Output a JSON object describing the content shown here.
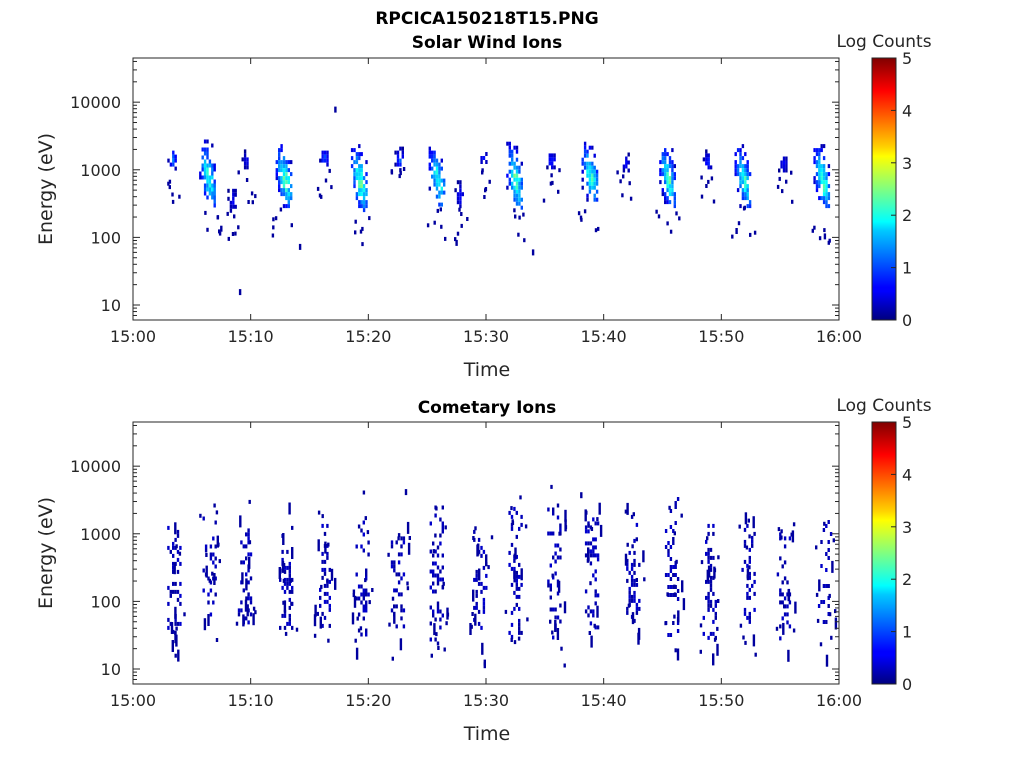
{
  "figure": {
    "title": "RPCICA150218T15.PNG"
  },
  "chart_data": [
    {
      "type": "heatmap",
      "title": "Solar Wind Ions",
      "xlabel": "Time",
      "ylabel": "Energy (eV)",
      "xlim": [
        "15:00",
        "16:00"
      ],
      "x_ticks": [
        "15:00",
        "15:10",
        "15:20",
        "15:30",
        "15:40",
        "15:50",
        "16:00"
      ],
      "ylim": [
        6,
        45000
      ],
      "y_scale": "log",
      "y_ticks": [
        {
          "value": 10,
          "label": "10"
        },
        {
          "value": 100,
          "label": "100"
        },
        {
          "value": 1000,
          "label": "1000"
        },
        {
          "value": 10000,
          "label": "10000"
        }
      ],
      "colorbar": {
        "label": "Log Counts",
        "min": 0,
        "max": 5,
        "ticks": [
          "0",
          "1",
          "2",
          "3",
          "4",
          "5"
        ],
        "colormap": "jet"
      },
      "blobs": [
        {
          "t": 3.3,
          "e_min": 1100,
          "e_max": 2200,
          "peak": 1.2
        },
        {
          "t": 6.3,
          "e_min": 300,
          "e_max": 2800,
          "peak": 2.2
        },
        {
          "t": 8.4,
          "e_min": 250,
          "e_max": 600,
          "peak": 0.6
        },
        {
          "t": 9.6,
          "e_min": 1100,
          "e_max": 2000,
          "peak": 0.6
        },
        {
          "t": 12.8,
          "e_min": 300,
          "e_max": 2400,
          "peak": 2.5
        },
        {
          "t": 16.2,
          "e_min": 1200,
          "e_max": 2200,
          "peak": 1.1
        },
        {
          "t": 19.2,
          "e_min": 250,
          "e_max": 2400,
          "peak": 2.4
        },
        {
          "t": 22.6,
          "e_min": 1100,
          "e_max": 2200,
          "peak": 1.1
        },
        {
          "t": 25.8,
          "e_min": 300,
          "e_max": 2200,
          "peak": 2.3
        },
        {
          "t": 27.7,
          "e_min": 300,
          "e_max": 700,
          "peak": 0.7
        },
        {
          "t": 29.7,
          "e_min": 1200,
          "e_max": 2100,
          "peak": 0.8
        },
        {
          "t": 32.4,
          "e_min": 280,
          "e_max": 2600,
          "peak": 2.4
        },
        {
          "t": 35.5,
          "e_min": 1100,
          "e_max": 2000,
          "peak": 1.0
        },
        {
          "t": 38.8,
          "e_min": 350,
          "e_max": 2600,
          "peak": 2.3
        },
        {
          "t": 41.8,
          "e_min": 1000,
          "e_max": 1800,
          "peak": 0.7
        },
        {
          "t": 45.4,
          "e_min": 300,
          "e_max": 2400,
          "peak": 2.3
        },
        {
          "t": 48.8,
          "e_min": 1100,
          "e_max": 2000,
          "peak": 0.9
        },
        {
          "t": 51.8,
          "e_min": 300,
          "e_max": 2400,
          "peak": 2.2
        },
        {
          "t": 55.2,
          "e_min": 1000,
          "e_max": 1800,
          "peak": 0.7
        },
        {
          "t": 58.5,
          "e_min": 280,
          "e_max": 2400,
          "peak": 2.3
        }
      ],
      "scatter": [
        {
          "t": 9.1,
          "e": 15
        },
        {
          "t": 17.2,
          "e": 7500
        },
        {
          "t": 34.0,
          "e": 58
        },
        {
          "t": 27.5,
          "e": 80
        },
        {
          "t": 14.2,
          "e": 70
        },
        {
          "t": 58.8,
          "e": 100
        },
        {
          "t": 51.3,
          "e": 120
        },
        {
          "t": 7.5,
          "e": 130
        }
      ]
    },
    {
      "type": "heatmap",
      "title": "Cometary Ions",
      "xlabel": "Time",
      "ylabel": "Energy (eV)",
      "xlim": [
        "15:00",
        "16:00"
      ],
      "x_ticks": [
        "15:00",
        "15:10",
        "15:20",
        "15:30",
        "15:40",
        "15:50",
        "16:00"
      ],
      "ylim": [
        6,
        45000
      ],
      "y_scale": "log",
      "y_ticks": [
        {
          "value": 10,
          "label": "10"
        },
        {
          "value": 100,
          "label": "100"
        },
        {
          "value": 1000,
          "label": "1000"
        },
        {
          "value": 10000,
          "label": "10000"
        }
      ],
      "colorbar": {
        "label": "Log Counts",
        "min": 0,
        "max": 5,
        "ticks": [
          "0",
          "1",
          "2",
          "3",
          "4",
          "5"
        ],
        "colormap": "jet"
      },
      "blobs": [
        {
          "t": 3.5,
          "e_min": 30,
          "e_max": 1500,
          "peak": 0.3
        },
        {
          "t": 6.5,
          "e_min": 60,
          "e_max": 1800,
          "peak": 0.3
        },
        {
          "t": 9.5,
          "e_min": 50,
          "e_max": 1200,
          "peak": 0.3
        },
        {
          "t": 13.0,
          "e_min": 40,
          "e_max": 1500,
          "peak": 0.3
        },
        {
          "t": 16.2,
          "e_min": 40,
          "e_max": 1400,
          "peak": 0.3
        },
        {
          "t": 19.5,
          "e_min": 30,
          "e_max": 1800,
          "peak": 0.35
        },
        {
          "t": 22.5,
          "e_min": 40,
          "e_max": 1200,
          "peak": 0.3
        },
        {
          "t": 25.8,
          "e_min": 25,
          "e_max": 3000,
          "peak": 0.3
        },
        {
          "t": 29.5,
          "e_min": 40,
          "e_max": 1500,
          "peak": 0.3
        },
        {
          "t": 32.5,
          "e_min": 30,
          "e_max": 2500,
          "peak": 0.3
        },
        {
          "t": 35.8,
          "e_min": 30,
          "e_max": 2800,
          "peak": 0.3
        },
        {
          "t": 39.0,
          "e_min": 40,
          "e_max": 2000,
          "peak": 0.3
        },
        {
          "t": 42.5,
          "e_min": 50,
          "e_max": 2500,
          "peak": 0.3
        },
        {
          "t": 45.8,
          "e_min": 30,
          "e_max": 3500,
          "peak": 0.3
        },
        {
          "t": 49.0,
          "e_min": 30,
          "e_max": 1400,
          "peak": 0.3
        },
        {
          "t": 52.3,
          "e_min": 40,
          "e_max": 1400,
          "peak": 0.3
        },
        {
          "t": 55.3,
          "e_min": 30,
          "e_max": 1200,
          "peak": 0.3
        },
        {
          "t": 58.8,
          "e_min": 50,
          "e_max": 1600,
          "peak": 0.3
        }
      ],
      "scatter": [
        {
          "t": 29.9,
          "e": 11
        },
        {
          "t": 29.9,
          "e": 12
        },
        {
          "t": 23.2,
          "e": 4000
        },
        {
          "t": 38.1,
          "e": 3600
        }
      ]
    }
  ]
}
